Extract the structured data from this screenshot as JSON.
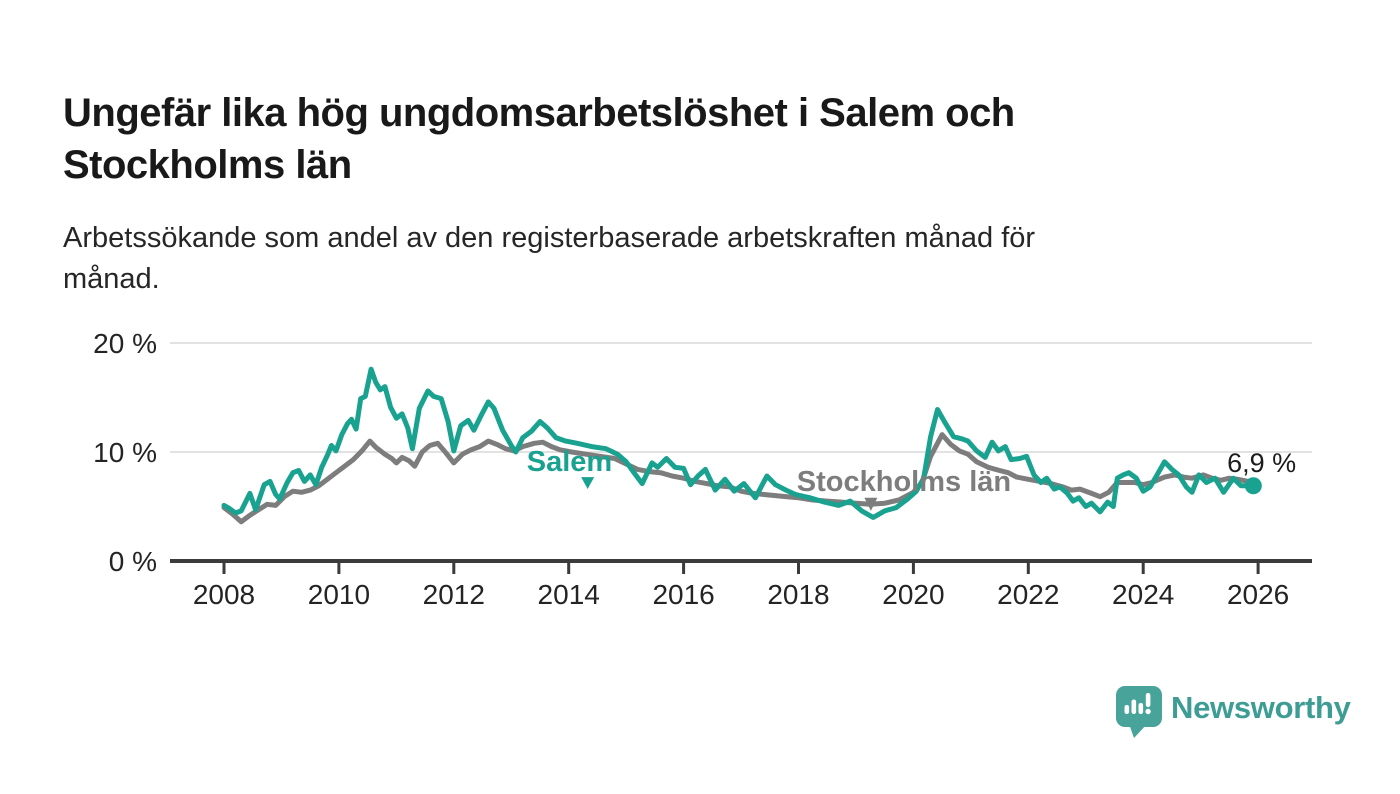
{
  "header": {
    "title_lines": [
      "Ungefär lika hög ungdomsarbetslöshet i Salem och",
      "Stockholms län"
    ],
    "subtitle_lines": [
      "Arbetssökande som andel av den registerbaserade arbetskraften månad för",
      "månad."
    ]
  },
  "branding": {
    "name": "Newsworthy",
    "color": "#3d9c94",
    "badge_color": "#48a39b",
    "icon": "newsworthy-badge-icon"
  },
  "chart_data": {
    "type": "line",
    "title": "Ungefär lika hög ungdomsarbetslöshet i Salem och Stockholms län",
    "subtitle": "Arbetssökande som andel av den registerbaserade arbetskraften månad för månad.",
    "unit": "%",
    "legend_position": "inline-labels",
    "grid": true,
    "x_axis": {
      "ticks": [
        2008,
        2010,
        2012,
        2014,
        2016,
        2018,
        2020,
        2022,
        2024,
        2026
      ],
      "range": [
        2007.05,
        2026.95
      ]
    },
    "y_axis": {
      "ticks": [
        {
          "value": 0,
          "label": "0 %"
        },
        {
          "value": 10,
          "label": "10 %"
        },
        {
          "value": 20,
          "label": "20 %"
        }
      ],
      "gridlines": [
        10,
        20
      ],
      "range": [
        0,
        21.8
      ]
    },
    "series": [
      {
        "name": "Stockholms län",
        "color": "#7d7d7d",
        "points": [
          [
            2008.0,
            4.9
          ],
          [
            2008.15,
            4.3
          ],
          [
            2008.3,
            3.6
          ],
          [
            2008.45,
            4.2
          ],
          [
            2008.6,
            4.7
          ],
          [
            2008.75,
            5.2
          ],
          [
            2008.9,
            5.1
          ],
          [
            2009.05,
            5.9
          ],
          [
            2009.2,
            6.4
          ],
          [
            2009.35,
            6.3
          ],
          [
            2009.5,
            6.5
          ],
          [
            2009.65,
            6.9
          ],
          [
            2009.8,
            7.5
          ],
          [
            2009.95,
            8.1
          ],
          [
            2010.1,
            8.7
          ],
          [
            2010.25,
            9.3
          ],
          [
            2010.4,
            10.1
          ],
          [
            2010.54,
            11.0
          ],
          [
            2010.65,
            10.4
          ],
          [
            2010.8,
            9.8
          ],
          [
            2010.92,
            9.4
          ],
          [
            2011.0,
            9.0
          ],
          [
            2011.1,
            9.5
          ],
          [
            2011.22,
            9.2
          ],
          [
            2011.32,
            8.7
          ],
          [
            2011.45,
            10.0
          ],
          [
            2011.58,
            10.6
          ],
          [
            2011.72,
            10.8
          ],
          [
            2011.85,
            10.0
          ],
          [
            2012.0,
            9.0
          ],
          [
            2012.15,
            9.8
          ],
          [
            2012.3,
            10.2
          ],
          [
            2012.45,
            10.5
          ],
          [
            2012.6,
            11.0
          ],
          [
            2012.75,
            10.7
          ],
          [
            2012.9,
            10.3
          ],
          [
            2013.05,
            10.1
          ],
          [
            2013.2,
            10.5
          ],
          [
            2013.4,
            10.8
          ],
          [
            2013.55,
            10.9
          ],
          [
            2013.7,
            10.5
          ],
          [
            2013.85,
            10.2
          ],
          [
            2014.05,
            10.0
          ],
          [
            2014.3,
            9.8
          ],
          [
            2014.55,
            9.6
          ],
          [
            2014.8,
            9.4
          ],
          [
            2015.0,
            8.9
          ],
          [
            2015.2,
            8.4
          ],
          [
            2015.4,
            8.2
          ],
          [
            2015.6,
            8.1
          ],
          [
            2015.8,
            7.8
          ],
          [
            2016.0,
            7.6
          ],
          [
            2016.2,
            7.3
          ],
          [
            2016.4,
            7.1
          ],
          [
            2016.6,
            6.9
          ],
          [
            2016.8,
            6.8
          ],
          [
            2017.0,
            6.4
          ],
          [
            2017.2,
            6.2
          ],
          [
            2017.4,
            6.1
          ],
          [
            2017.6,
            6.0
          ],
          [
            2017.8,
            5.9
          ],
          [
            2018.0,
            5.8
          ],
          [
            2018.25,
            5.6
          ],
          [
            2018.5,
            5.5
          ],
          [
            2018.75,
            5.4
          ],
          [
            2019.0,
            5.3
          ],
          [
            2019.25,
            5.2
          ],
          [
            2019.5,
            5.3
          ],
          [
            2019.75,
            5.6
          ],
          [
            2020.0,
            6.3
          ],
          [
            2020.15,
            7.2
          ],
          [
            2020.3,
            9.6
          ],
          [
            2020.5,
            11.6
          ],
          [
            2020.65,
            10.7
          ],
          [
            2020.8,
            10.1
          ],
          [
            2020.95,
            9.8
          ],
          [
            2021.1,
            9.1
          ],
          [
            2021.3,
            8.6
          ],
          [
            2021.5,
            8.3
          ],
          [
            2021.65,
            8.1
          ],
          [
            2021.8,
            7.7
          ],
          [
            2022.0,
            7.5
          ],
          [
            2022.2,
            7.3
          ],
          [
            2022.4,
            7.1
          ],
          [
            2022.6,
            6.8
          ],
          [
            2022.75,
            6.5
          ],
          [
            2022.9,
            6.6
          ],
          [
            2023.1,
            6.2
          ],
          [
            2023.25,
            5.9
          ],
          [
            2023.4,
            6.3
          ],
          [
            2023.55,
            7.2
          ],
          [
            2023.7,
            7.2
          ],
          [
            2023.85,
            7.2
          ],
          [
            2024.0,
            7.0
          ],
          [
            2024.15,
            7.2
          ],
          [
            2024.37,
            7.7
          ],
          [
            2024.55,
            7.9
          ],
          [
            2024.7,
            7.7
          ],
          [
            2024.85,
            7.6
          ],
          [
            2025.05,
            7.9
          ],
          [
            2025.2,
            7.6
          ],
          [
            2025.35,
            7.4
          ],
          [
            2025.5,
            7.6
          ],
          [
            2025.65,
            7.5
          ],
          [
            2025.83,
            7.3
          ]
        ]
      },
      {
        "name": "Salem",
        "color": "#1aa291",
        "end_dot": true,
        "end_label": "6,9 %",
        "points": [
          [
            2008.0,
            5.1
          ],
          [
            2008.1,
            4.8
          ],
          [
            2008.2,
            4.4
          ],
          [
            2008.3,
            4.6
          ],
          [
            2008.45,
            6.2
          ],
          [
            2008.55,
            4.7
          ],
          [
            2008.7,
            7.0
          ],
          [
            2008.8,
            7.3
          ],
          [
            2008.9,
            6.1
          ],
          [
            2008.97,
            5.7
          ],
          [
            2009.1,
            7.2
          ],
          [
            2009.2,
            8.1
          ],
          [
            2009.3,
            8.3
          ],
          [
            2009.4,
            7.3
          ],
          [
            2009.5,
            7.9
          ],
          [
            2009.6,
            7.0
          ],
          [
            2009.7,
            8.6
          ],
          [
            2009.8,
            9.7
          ],
          [
            2009.87,
            10.6
          ],
          [
            2009.95,
            10.1
          ],
          [
            2010.05,
            11.6
          ],
          [
            2010.15,
            12.6
          ],
          [
            2010.22,
            13.0
          ],
          [
            2010.3,
            12.1
          ],
          [
            2010.38,
            14.9
          ],
          [
            2010.46,
            15.1
          ],
          [
            2010.56,
            17.6
          ],
          [
            2010.64,
            16.4
          ],
          [
            2010.72,
            15.7
          ],
          [
            2010.8,
            16.0
          ],
          [
            2010.9,
            14.1
          ],
          [
            2011.0,
            13.1
          ],
          [
            2011.1,
            13.5
          ],
          [
            2011.2,
            12.2
          ],
          [
            2011.28,
            10.3
          ],
          [
            2011.4,
            14.0
          ],
          [
            2011.55,
            15.6
          ],
          [
            2011.65,
            15.1
          ],
          [
            2011.78,
            14.9
          ],
          [
            2011.9,
            12.8
          ],
          [
            2012.0,
            10.1
          ],
          [
            2012.12,
            12.4
          ],
          [
            2012.25,
            12.9
          ],
          [
            2012.35,
            12.0
          ],
          [
            2012.48,
            13.4
          ],
          [
            2012.6,
            14.6
          ],
          [
            2012.7,
            14.0
          ],
          [
            2012.85,
            12.0
          ],
          [
            2013.0,
            10.6
          ],
          [
            2013.08,
            10.0
          ],
          [
            2013.2,
            11.3
          ],
          [
            2013.35,
            11.9
          ],
          [
            2013.5,
            12.8
          ],
          [
            2013.63,
            12.2
          ],
          [
            2013.78,
            11.3
          ],
          [
            2013.95,
            11.0
          ],
          [
            2014.15,
            10.8
          ],
          [
            2014.4,
            10.5
          ],
          [
            2014.65,
            10.3
          ],
          [
            2014.85,
            9.8
          ],
          [
            2015.0,
            9.1
          ],
          [
            2015.15,
            8.0
          ],
          [
            2015.28,
            7.1
          ],
          [
            2015.45,
            9.0
          ],
          [
            2015.55,
            8.6
          ],
          [
            2015.7,
            9.4
          ],
          [
            2015.85,
            8.6
          ],
          [
            2016.0,
            8.5
          ],
          [
            2016.12,
            7.0
          ],
          [
            2016.25,
            7.8
          ],
          [
            2016.38,
            8.4
          ],
          [
            2016.55,
            6.5
          ],
          [
            2016.72,
            7.5
          ],
          [
            2016.88,
            6.4
          ],
          [
            2017.05,
            7.1
          ],
          [
            2017.25,
            5.8
          ],
          [
            2017.45,
            7.8
          ],
          [
            2017.6,
            7.0
          ],
          [
            2017.78,
            6.5
          ],
          [
            2017.95,
            6.1
          ],
          [
            2018.2,
            5.8
          ],
          [
            2018.45,
            5.4
          ],
          [
            2018.7,
            5.1
          ],
          [
            2018.9,
            5.5
          ],
          [
            2019.1,
            4.6
          ],
          [
            2019.3,
            4.0
          ],
          [
            2019.5,
            4.6
          ],
          [
            2019.7,
            4.9
          ],
          [
            2019.9,
            5.7
          ],
          [
            2020.05,
            6.4
          ],
          [
            2020.18,
            7.6
          ],
          [
            2020.3,
            11.4
          ],
          [
            2020.42,
            13.9
          ],
          [
            2020.55,
            12.7
          ],
          [
            2020.7,
            11.4
          ],
          [
            2020.85,
            11.2
          ],
          [
            2020.95,
            11.0
          ],
          [
            2021.1,
            10.1
          ],
          [
            2021.25,
            9.5
          ],
          [
            2021.37,
            10.9
          ],
          [
            2021.48,
            10.1
          ],
          [
            2021.6,
            10.5
          ],
          [
            2021.7,
            9.3
          ],
          [
            2021.85,
            9.4
          ],
          [
            2021.97,
            9.6
          ],
          [
            2022.1,
            7.9
          ],
          [
            2022.22,
            7.2
          ],
          [
            2022.32,
            7.6
          ],
          [
            2022.45,
            6.6
          ],
          [
            2022.55,
            6.8
          ],
          [
            2022.68,
            6.2
          ],
          [
            2022.78,
            5.5
          ],
          [
            2022.88,
            5.8
          ],
          [
            2023.0,
            5.0
          ],
          [
            2023.1,
            5.3
          ],
          [
            2023.25,
            4.5
          ],
          [
            2023.38,
            5.4
          ],
          [
            2023.48,
            5.0
          ],
          [
            2023.55,
            7.6
          ],
          [
            2023.65,
            7.9
          ],
          [
            2023.75,
            8.1
          ],
          [
            2023.88,
            7.6
          ],
          [
            2024.0,
            6.4
          ],
          [
            2024.12,
            6.8
          ],
          [
            2024.22,
            7.7
          ],
          [
            2024.37,
            9.1
          ],
          [
            2024.5,
            8.4
          ],
          [
            2024.62,
            7.9
          ],
          [
            2024.75,
            6.8
          ],
          [
            2024.85,
            6.3
          ],
          [
            2024.97,
            7.9
          ],
          [
            2025.1,
            7.2
          ],
          [
            2025.25,
            7.6
          ],
          [
            2025.4,
            6.3
          ],
          [
            2025.57,
            7.6
          ],
          [
            2025.7,
            6.9
          ],
          [
            2025.83,
            6.9
          ]
        ]
      }
    ],
    "labels": [
      {
        "text": "Salem",
        "x": 2013.27,
        "y": 8.26,
        "color": "#1aa291",
        "bold": true,
        "size": 29,
        "arrow": {
          "cx": 2014.33,
          "top": 7.7,
          "tip": 6.6
        }
      },
      {
        "text": "Stockholms län",
        "x": 2017.97,
        "y": 6.42,
        "color": "#7d7d7d",
        "bold": true,
        "size": 29,
        "arrow": {
          "cx": 2019.26,
          "top": 5.8,
          "tip": 4.6
        }
      },
      {
        "text": "6,9 %",
        "x": 2025.46,
        "y": 8.17,
        "color": "#1c1c1c",
        "bold": false,
        "size": 27
      }
    ]
  }
}
